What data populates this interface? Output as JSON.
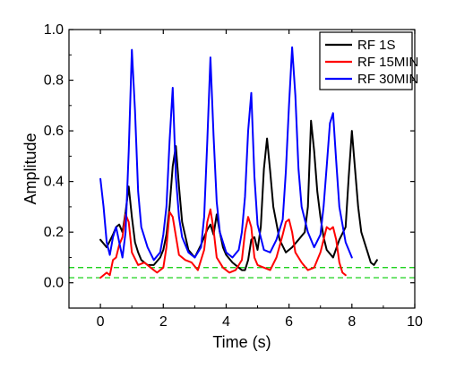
{
  "chart_data": {
    "type": "line",
    "xlabel": "Time (s)",
    "ylabel": "Amplitude",
    "xlim": [
      -1,
      10
    ],
    "ylim": [
      -0.1,
      1.0
    ],
    "xticks": [
      0,
      2,
      4,
      6,
      8,
      10
    ],
    "yticks": [
      0.0,
      0.2,
      0.4,
      0.6,
      0.8,
      1.0
    ],
    "ytick_labels": [
      "0.0",
      "0.2",
      "0.4",
      "0.6",
      "0.8",
      "1.0"
    ],
    "legend_position": "top-right",
    "grid": false,
    "series": [
      {
        "name": "RF 1S",
        "color": "#000000",
        "x": [
          0.0,
          0.2,
          0.4,
          0.5,
          0.6,
          0.7,
          0.8,
          0.9,
          1.0,
          1.1,
          1.2,
          1.3,
          1.5,
          1.7,
          1.9,
          2.0,
          2.1,
          2.2,
          2.3,
          2.4,
          2.5,
          2.6,
          2.8,
          3.0,
          3.2,
          3.4,
          3.5,
          3.6,
          3.7,
          3.8,
          3.9,
          4.0,
          4.2,
          4.4,
          4.5,
          4.6,
          4.7,
          4.8,
          4.9,
          5.0,
          5.1,
          5.2,
          5.3,
          5.4,
          5.5,
          5.7,
          5.9,
          6.1,
          6.3,
          6.5,
          6.6,
          6.7,
          6.8,
          6.9,
          7.0,
          7.1,
          7.2,
          7.4,
          7.6,
          7.8,
          7.9,
          8.0,
          8.1,
          8.2,
          8.3,
          8.5,
          8.6,
          8.7,
          8.8
        ],
        "values": [
          0.17,
          0.14,
          0.19,
          0.22,
          0.23,
          0.2,
          0.28,
          0.38,
          0.26,
          0.16,
          0.12,
          0.09,
          0.07,
          0.07,
          0.1,
          0.13,
          0.19,
          0.3,
          0.46,
          0.54,
          0.38,
          0.24,
          0.13,
          0.1,
          0.15,
          0.21,
          0.23,
          0.19,
          0.27,
          0.2,
          0.14,
          0.11,
          0.08,
          0.06,
          0.05,
          0.05,
          0.09,
          0.17,
          0.18,
          0.13,
          0.22,
          0.45,
          0.57,
          0.44,
          0.3,
          0.17,
          0.12,
          0.14,
          0.17,
          0.2,
          0.3,
          0.64,
          0.52,
          0.36,
          0.26,
          0.18,
          0.13,
          0.1,
          0.17,
          0.22,
          0.42,
          0.6,
          0.45,
          0.3,
          0.2,
          0.12,
          0.08,
          0.07,
          0.09
        ]
      },
      {
        "name": "RF 15MIN",
        "color": "#ff0000",
        "x": [
          0.0,
          0.2,
          0.3,
          0.4,
          0.5,
          0.6,
          0.7,
          0.8,
          0.9,
          1.0,
          1.2,
          1.4,
          1.6,
          1.8,
          2.0,
          2.1,
          2.2,
          2.3,
          2.5,
          2.7,
          2.9,
          3.1,
          3.3,
          3.4,
          3.5,
          3.6,
          3.7,
          3.9,
          4.1,
          4.3,
          4.5,
          4.6,
          4.7,
          4.8,
          4.9,
          5.0,
          5.2,
          5.4,
          5.6,
          5.8,
          5.9,
          6.0,
          6.1,
          6.2,
          6.4,
          6.6,
          6.8,
          7.0,
          7.1,
          7.2,
          7.3,
          7.4,
          7.5,
          7.6,
          7.7,
          7.8
        ],
        "values": [
          0.02,
          0.04,
          0.03,
          0.09,
          0.1,
          0.15,
          0.18,
          0.27,
          0.24,
          0.12,
          0.07,
          0.08,
          0.06,
          0.04,
          0.06,
          0.14,
          0.28,
          0.26,
          0.11,
          0.09,
          0.08,
          0.05,
          0.13,
          0.24,
          0.29,
          0.21,
          0.1,
          0.06,
          0.04,
          0.05,
          0.09,
          0.2,
          0.26,
          0.22,
          0.1,
          0.07,
          0.06,
          0.05,
          0.1,
          0.19,
          0.24,
          0.25,
          0.2,
          0.12,
          0.08,
          0.05,
          0.06,
          0.12,
          0.17,
          0.22,
          0.21,
          0.22,
          0.17,
          0.08,
          0.04,
          0.03
        ]
      },
      {
        "name": "RF 30MIN",
        "color": "#0000ff",
        "x": [
          0.0,
          0.1,
          0.2,
          0.3,
          0.4,
          0.5,
          0.6,
          0.7,
          0.8,
          0.9,
          1.0,
          1.1,
          1.2,
          1.3,
          1.5,
          1.7,
          1.9,
          2.0,
          2.1,
          2.2,
          2.3,
          2.4,
          2.5,
          2.6,
          2.8,
          3.0,
          3.2,
          3.3,
          3.4,
          3.5,
          3.6,
          3.7,
          3.8,
          4.0,
          4.2,
          4.4,
          4.5,
          4.6,
          4.7,
          4.8,
          4.9,
          5.0,
          5.2,
          5.4,
          5.6,
          5.8,
          5.9,
          6.0,
          6.1,
          6.2,
          6.3,
          6.4,
          6.6,
          6.8,
          7.0,
          7.1,
          7.2,
          7.3,
          7.4,
          7.5,
          7.6,
          7.8,
          8.0
        ],
        "values": [
          0.41,
          0.3,
          0.16,
          0.11,
          0.18,
          0.22,
          0.16,
          0.1,
          0.2,
          0.52,
          0.92,
          0.68,
          0.36,
          0.22,
          0.14,
          0.09,
          0.12,
          0.19,
          0.3,
          0.56,
          0.77,
          0.42,
          0.26,
          0.18,
          0.12,
          0.1,
          0.14,
          0.26,
          0.56,
          0.89,
          0.58,
          0.32,
          0.2,
          0.12,
          0.1,
          0.13,
          0.2,
          0.34,
          0.6,
          0.75,
          0.42,
          0.23,
          0.13,
          0.12,
          0.17,
          0.25,
          0.44,
          0.7,
          0.93,
          0.74,
          0.45,
          0.3,
          0.2,
          0.14,
          0.19,
          0.3,
          0.46,
          0.63,
          0.67,
          0.48,
          0.3,
          0.16,
          0.1
        ]
      }
    ],
    "reference_lines": {
      "color": "#00cc00",
      "style": "dashed",
      "y": [
        0.02,
        0.06
      ]
    }
  }
}
